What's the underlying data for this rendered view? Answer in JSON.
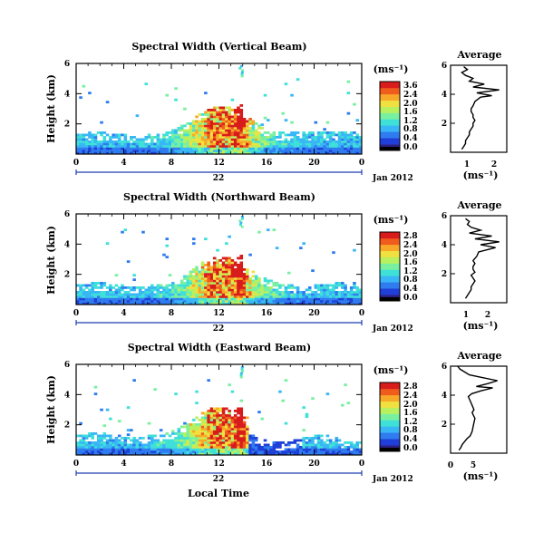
{
  "colormap": [
    "#2b1f86",
    "#1f3fd8",
    "#2f7bf0",
    "#38b6f5",
    "#3fe0d8",
    "#78f0a0",
    "#b8f060",
    "#f0e040",
    "#f8a828",
    "#f05c1c",
    "#d81c1c"
  ],
  "panels": [
    {
      "title": "Spectral Width (Vertical Beam)",
      "ylabel": "Height (km)",
      "cb_unit": "(ms⁻¹)",
      "cb_ticks": [
        "3.6",
        "2.4",
        "2.0",
        "1.6",
        "1.2",
        "0.8",
        "0.4",
        "0.0"
      ],
      "day": "22",
      "month": "Jan 2012",
      "avg_title": "Average",
      "avg_unit": "(ms⁻¹)",
      "avg_xticks": [
        "1",
        "2"
      ]
    },
    {
      "title": "Spectral Width (Northward Beam)",
      "ylabel": "Height (km)",
      "cb_unit": "(ms⁻¹)",
      "cb_ticks": [
        "2.8",
        "2.4",
        "2.0",
        "1.6",
        "1.2",
        "0.8",
        "0.4",
        "0.0"
      ],
      "day": "22",
      "month": "Jan 2012",
      "avg_title": "Average",
      "avg_unit": "(ms⁻¹)",
      "avg_xticks": [
        "1",
        "2"
      ]
    },
    {
      "title": "Spectral Width (Eastward Beam)",
      "ylabel": "Height (km)",
      "cb_unit": "(ms⁻¹)",
      "cb_ticks": [
        "2.8",
        "2.4",
        "2.0",
        "1.6",
        "1.2",
        "0.8",
        "0.4",
        "0.0"
      ],
      "day": "22",
      "month": "Jan 2012",
      "avg_title": "Average",
      "avg_unit": "(ms⁻¹)",
      "avg_xticks": [
        "0",
        "5"
      ]
    }
  ],
  "xlabel_bottom": "Local Time",
  "chart_data": [
    {
      "type": "heatmap",
      "title": "Spectral Width (Vertical Beam)",
      "xlabel": "",
      "ylabel": "Height (km)",
      "xticks": [
        "0",
        "4",
        "8",
        "12",
        "16",
        "20",
        "0"
      ],
      "yticks": [
        "2",
        "4",
        "6"
      ],
      "xlim": [
        0,
        24
      ],
      "ylim": [
        0,
        6
      ],
      "colorbar_range": [
        0,
        3.6
      ]
    },
    {
      "type": "line",
      "title": "Average",
      "xlabel": "(ms⁻¹)",
      "xticks": [
        "1",
        "2"
      ],
      "yticks": [
        "2",
        "4",
        "6"
      ],
      "ylim": [
        0,
        6
      ],
      "series": [
        {
          "x": [
            0.6,
            0.7,
            0.8,
            0.8,
            0.9,
            1.0,
            1.0,
            1.1,
            1.2,
            1.2,
            1.3,
            1.2,
            1.2,
            1.1,
            1.1,
            1.2,
            1.3,
            1.6,
            2.2,
            1.4,
            2.6,
            1.2,
            1.8,
            1.0,
            1.2,
            0.8,
            0.6,
            0.9,
            0.7
          ],
          "y": [
            0.2,
            0.4,
            0.6,
            0.8,
            1.0,
            1.2,
            1.4,
            1.6,
            1.8,
            2.0,
            2.2,
            2.4,
            2.6,
            2.8,
            3.0,
            3.2,
            3.5,
            3.8,
            3.9,
            4.1,
            4.3,
            4.5,
            4.7,
            4.9,
            5.1,
            5.3,
            5.5,
            5.7,
            5.9
          ]
        }
      ]
    },
    {
      "type": "heatmap",
      "title": "Spectral Width (Northward Beam)",
      "xlabel": "",
      "ylabel": "Height (km)",
      "xticks": [
        "0",
        "4",
        "8",
        "12",
        "16",
        "20",
        "0"
      ],
      "yticks": [
        "2",
        "4",
        "6"
      ],
      "xlim": [
        0,
        24
      ],
      "ylim": [
        0,
        6
      ],
      "colorbar_range": [
        0,
        2.8
      ]
    },
    {
      "type": "line",
      "title": "Average",
      "xlabel": "(ms⁻¹)",
      "xticks": [
        "1",
        "2"
      ],
      "yticks": [
        "2",
        "4",
        "6"
      ],
      "ylim": [
        0,
        6
      ],
      "series": [
        {
          "x": [
            0.8,
            0.9,
            1.0,
            1.1,
            1.1,
            1.2,
            1.3,
            1.2,
            1.1,
            1.3,
            1.2,
            1.2,
            1.3,
            1.2,
            1.4,
            1.5,
            2.4,
            1.6,
            2.6,
            1.3,
            2.2,
            1.0,
            1.6,
            1.1,
            0.9,
            1.0,
            0.8
          ],
          "y": [
            0.3,
            0.5,
            0.7,
            0.9,
            1.1,
            1.3,
            1.5,
            1.7,
            1.9,
            2.1,
            2.3,
            2.5,
            2.7,
            2.9,
            3.2,
            3.5,
            3.8,
            4.0,
            4.2,
            4.4,
            4.6,
            4.8,
            5.0,
            5.2,
            5.4,
            5.6,
            5.8
          ]
        }
      ]
    },
    {
      "type": "heatmap",
      "title": "Spectral Width (Eastward Beam)",
      "xlabel": "Local Time",
      "ylabel": "Height (km)",
      "xticks": [
        "0",
        "4",
        "8",
        "12",
        "16",
        "20",
        "0"
      ],
      "yticks": [
        "2",
        "4",
        "6"
      ],
      "xlim": [
        0,
        24
      ],
      "ylim": [
        0,
        6
      ],
      "colorbar_range": [
        0,
        2.8
      ]
    },
    {
      "type": "line",
      "title": "Average",
      "xlabel": "(ms⁻¹)",
      "xticks": [
        "0",
        "5"
      ],
      "yticks": [
        "2",
        "4",
        "6"
      ],
      "ylim": [
        0,
        6
      ],
      "series": [
        {
          "x": [
            1.8,
            2.2,
            2.5,
            3.0,
            3.5,
            4.2,
            4.6,
            4.8,
            5.0,
            5.2,
            4.9,
            4.6,
            5.0,
            4.6,
            4.2,
            3.8,
            4.5,
            6.5,
            9.0,
            5.5,
            8.0,
            10.0,
            7.0,
            4.0,
            3.0,
            2.0,
            1.5
          ],
          "y": [
            0.2,
            0.4,
            0.6,
            0.8,
            1.0,
            1.2,
            1.5,
            1.8,
            2.1,
            2.4,
            2.6,
            2.8,
            3.0,
            3.3,
            3.6,
            3.9,
            4.1,
            4.3,
            4.5,
            4.6,
            4.8,
            5.0,
            5.2,
            5.4,
            5.6,
            5.8,
            6.0
          ]
        }
      ]
    }
  ]
}
